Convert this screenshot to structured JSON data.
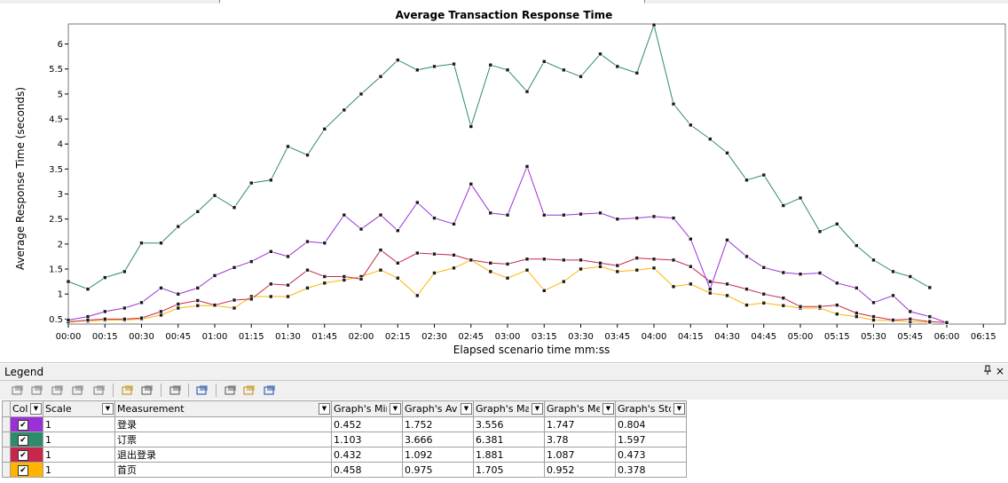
{
  "chart_data": {
    "type": "line",
    "title": "Average Transaction Response Time",
    "xlabel": "Elapsed scenario time mm:ss",
    "ylabel": "Average Response Time (seconds)",
    "x_tick_labels": [
      "00:00",
      "00:15",
      "00:30",
      "00:45",
      "01:00",
      "01:15",
      "01:30",
      "01:45",
      "02:00",
      "02:15",
      "02:30",
      "02:45",
      "03:00",
      "03:15",
      "03:30",
      "03:45",
      "04:00",
      "04:15",
      "04:30",
      "04:45",
      "05:00",
      "05:15",
      "05:30",
      "05:45",
      "06:00",
      "06:15"
    ],
    "x_tick_seconds": [
      0,
      15,
      30,
      45,
      60,
      75,
      90,
      105,
      120,
      135,
      150,
      165,
      180,
      195,
      210,
      225,
      240,
      255,
      270,
      285,
      300,
      315,
      330,
      345,
      360,
      375
    ],
    "xlim_seconds": [
      0,
      384
    ],
    "ylim": [
      0.4,
      6.4
    ],
    "y_ticks": [
      0.5,
      1,
      1.5,
      2,
      2.5,
      3,
      3.5,
      4,
      4.5,
      5,
      5.5,
      6
    ],
    "y_tick_labels": [
      "0.5",
      "1",
      "1.5",
      "2",
      "2.5",
      "3",
      "3.5",
      "4",
      "4.5",
      "5",
      "5.5",
      "6"
    ],
    "grid": false,
    "x_seconds": [
      0,
      8,
      15,
      23,
      30,
      38,
      45,
      53,
      60,
      68,
      75,
      83,
      90,
      98,
      105,
      113,
      120,
      128,
      135,
      143,
      150,
      158,
      165,
      173,
      180,
      188,
      195,
      203,
      210,
      218,
      225,
      233,
      240,
      248,
      255,
      263,
      270,
      278,
      285,
      293,
      300,
      308,
      315,
      323,
      330,
      338,
      345,
      353,
      360,
      368,
      375,
      383
    ],
    "series": [
      {
        "name": "订票",
        "color": "#2e8b6e",
        "marker_color": "#1a1a1a",
        "values": [
          1.25,
          1.1,
          1.33,
          1.45,
          2.02,
          2.02,
          2.35,
          2.65,
          2.97,
          2.73,
          3.22,
          3.28,
          3.95,
          3.78,
          4.3,
          4.68,
          5.0,
          5.35,
          5.68,
          5.48,
          5.55,
          5.6,
          4.35,
          5.58,
          5.48,
          5.05,
          5.65,
          5.48,
          5.35,
          5.8,
          5.55,
          5.42,
          6.38,
          4.8,
          4.38,
          4.1,
          3.82,
          3.28,
          3.38,
          2.77,
          2.92,
          2.25,
          2.4,
          1.97,
          1.68,
          1.45,
          1.35,
          1.13,
          null,
          null,
          null,
          null
        ]
      },
      {
        "name": "登录",
        "color": "#9b30d8",
        "marker_color": "#1a1a1a",
        "values": [
          0.48,
          0.55,
          0.65,
          0.72,
          0.83,
          1.12,
          1.0,
          1.12,
          1.37,
          1.53,
          1.65,
          1.85,
          1.75,
          2.05,
          2.02,
          2.58,
          2.3,
          2.58,
          2.27,
          2.83,
          2.52,
          2.4,
          3.2,
          2.62,
          2.58,
          3.55,
          2.58,
          2.58,
          2.6,
          2.62,
          2.5,
          2.52,
          2.55,
          2.52,
          2.1,
          1.1,
          2.08,
          1.75,
          1.53,
          1.43,
          1.4,
          1.42,
          1.22,
          1.12,
          0.83,
          0.97,
          0.65,
          0.55,
          0.43,
          null,
          null,
          null
        ]
      },
      {
        "name": "退出登录",
        "color": "#c8264a",
        "marker_color": "#1a1a1a",
        "values": [
          0.44,
          0.48,
          0.5,
          0.5,
          0.52,
          0.65,
          0.8,
          0.87,
          0.78,
          0.88,
          0.9,
          1.2,
          1.18,
          1.48,
          1.35,
          1.35,
          1.3,
          1.88,
          1.62,
          1.82,
          1.8,
          1.78,
          1.68,
          1.62,
          1.6,
          1.7,
          1.7,
          1.68,
          1.68,
          1.62,
          1.57,
          1.72,
          1.7,
          1.68,
          1.55,
          1.25,
          1.2,
          1.1,
          1.0,
          0.92,
          0.75,
          0.75,
          0.78,
          0.62,
          0.55,
          0.48,
          0.5,
          0.45,
          0.43,
          null,
          null,
          null
        ]
      },
      {
        "name": "首页",
        "color": "#ffb400",
        "marker_color": "#1a1a1a",
        "values": [
          0.46,
          0.46,
          0.48,
          0.48,
          0.5,
          0.58,
          0.72,
          0.77,
          0.77,
          0.72,
          0.95,
          0.95,
          0.95,
          1.12,
          1.22,
          1.28,
          1.35,
          1.48,
          1.32,
          0.97,
          1.42,
          1.52,
          1.68,
          1.45,
          1.32,
          1.48,
          1.07,
          1.25,
          1.5,
          1.55,
          1.45,
          1.48,
          1.52,
          1.15,
          1.2,
          1.02,
          0.97,
          0.78,
          0.82,
          0.77,
          0.72,
          0.72,
          0.6,
          0.55,
          0.48,
          0.47,
          0.45,
          0.43,
          null,
          null,
          null,
          null
        ]
      }
    ]
  },
  "legend": {
    "title": "Legend",
    "pin_icon": "pin-icon",
    "close_label": "×",
    "columns": {
      "color": "Col",
      "scale": "Scale",
      "measurement": "Measurement",
      "min": "Graph's Mini",
      "ave": "Graph's Ave",
      "max": "Graph's Max",
      "median": "Graph's Med",
      "std": "Graph's Std."
    },
    "rows": [
      {
        "color": "#9b30d8",
        "checked": "✔",
        "scale": "1",
        "measurement": "登录",
        "min": "0.452",
        "ave": "1.752",
        "max": "3.556",
        "median": "1.747",
        "std": "0.804"
      },
      {
        "color": "#2e8b6e",
        "checked": "✔",
        "scale": "1",
        "measurement": "订票",
        "min": "1.103",
        "ave": "3.666",
        "max": "6.381",
        "median": "3.78",
        "std": "1.597"
      },
      {
        "color": "#c8264a",
        "checked": "✔",
        "scale": "1",
        "measurement": "退出登录",
        "min": "0.432",
        "ave": "1.092",
        "max": "1.881",
        "median": "1.087",
        "std": "0.473"
      },
      {
        "color": "#ffb400",
        "checked": "✔",
        "scale": "1",
        "measurement": "首页",
        "min": "0.458",
        "ave": "0.975",
        "max": "1.705",
        "median": "0.952",
        "std": "0.378"
      }
    ]
  },
  "toolbar": {
    "icons": [
      "show-all-icon",
      "hide-icon",
      "configure-icon",
      "link-icon",
      "filter-icon",
      "export-icon",
      "copy-icon",
      "print-icon",
      "columns-icon",
      "bring-front-icon",
      "highlight-icon",
      "details-icon"
    ]
  }
}
